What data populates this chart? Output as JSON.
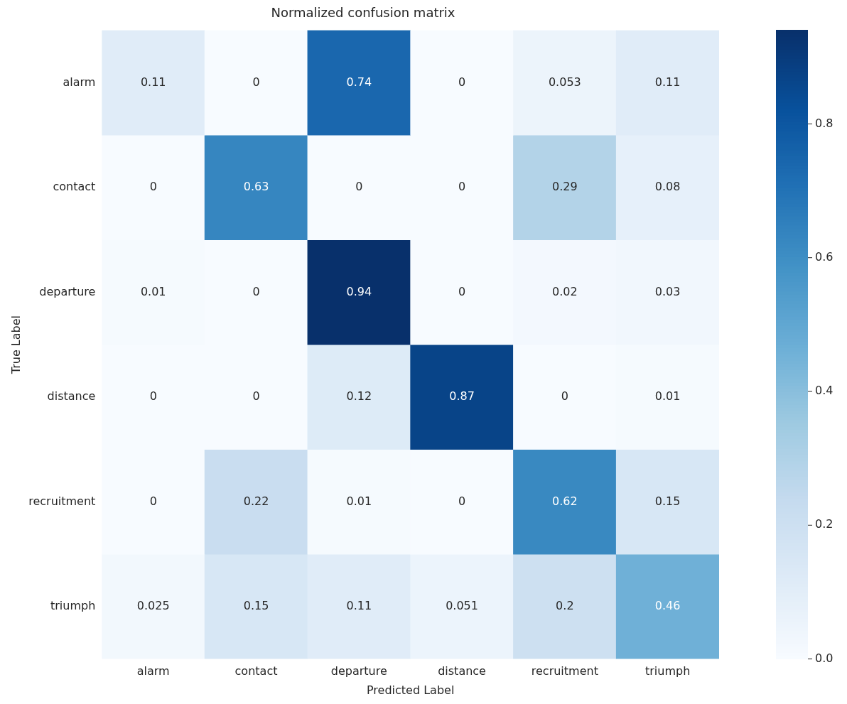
{
  "chart_data": {
    "type": "heatmap",
    "title": "Normalized confusion matrix",
    "xlabel": "Predicted Label",
    "ylabel": "True Label",
    "categories": [
      "alarm",
      "contact",
      "departure",
      "distance",
      "recruitment",
      "triumph"
    ],
    "y_categories": [
      "alarm",
      "contact",
      "departure",
      "distance",
      "recruitment",
      "triumph"
    ],
    "cells": [
      [
        0.11,
        0,
        0.74,
        0,
        0.053,
        0.11
      ],
      [
        0,
        0.63,
        0,
        0,
        0.29,
        0.08
      ],
      [
        0.01,
        0,
        0.94,
        0,
        0.02,
        0.03
      ],
      [
        0,
        0,
        0.12,
        0.87,
        0,
        0.01
      ],
      [
        0,
        0.22,
        0.01,
        0,
        0.62,
        0.15
      ],
      [
        0.025,
        0.15,
        0.11,
        0.051,
        0.2,
        0.46
      ]
    ],
    "data_labels": true,
    "clim": [
      0,
      0.94
    ],
    "cticks": [
      {
        "value": 0,
        "label": "0.0"
      },
      {
        "value": 0.2,
        "label": "0.2"
      },
      {
        "value": 0.4,
        "label": "0.4"
      },
      {
        "value": 0.6,
        "label": "0.6"
      },
      {
        "value": 0.8,
        "label": "0.8"
      }
    ]
  }
}
